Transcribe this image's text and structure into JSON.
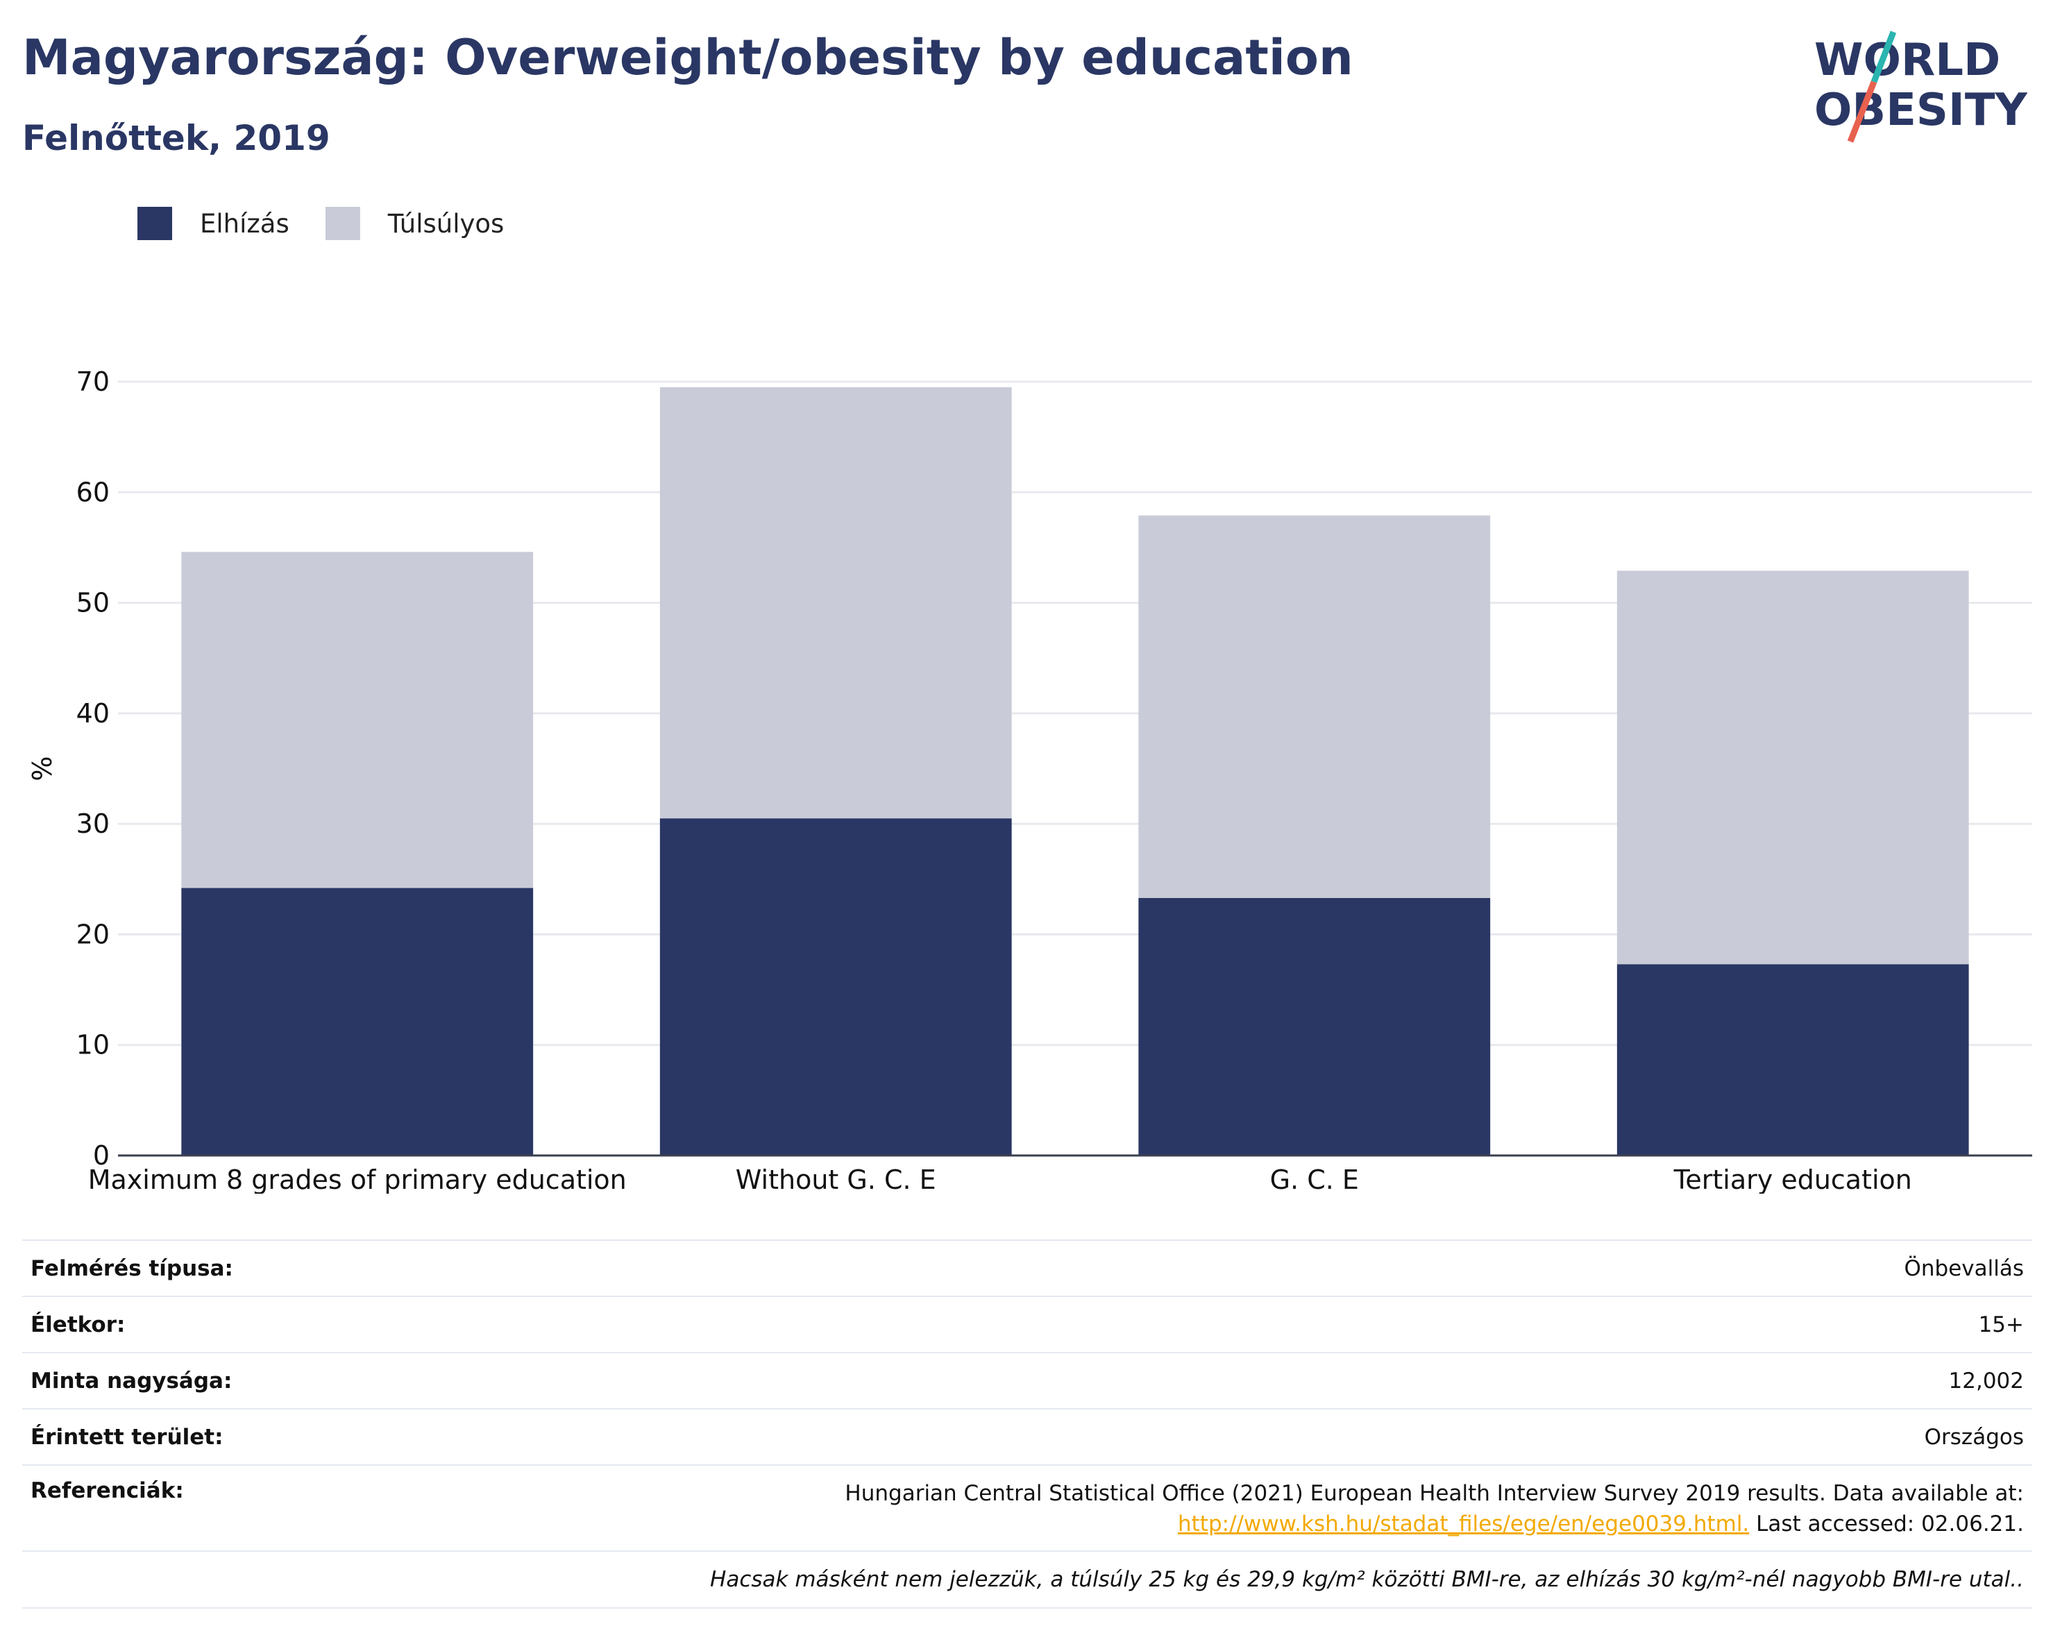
{
  "header": {
    "title": "Magyarország: Overweight/obesity by education",
    "subtitle": "Felnőttek, 2019"
  },
  "logo": {
    "line1": "WORLD",
    "line2": "OBESITY",
    "colors": {
      "text": "#2a3764",
      "accent_teal": "#2bb5b0",
      "accent_coral": "#e8614f"
    }
  },
  "legend": {
    "items": [
      {
        "label": "Elhízás",
        "color": "#2a3764"
      },
      {
        "label": "Túlsúlyos",
        "color": "#c9ccd8"
      }
    ]
  },
  "chart_data": {
    "type": "bar",
    "stacked": true,
    "categories": [
      "Maximum 8 grades of primary education",
      "Without G. C. E",
      "G. C. E",
      "Tertiary education"
    ],
    "series": [
      {
        "name": "Elhízás",
        "values": [
          24.2,
          30.5,
          23.3,
          17.3
        ],
        "color": "#2a3764"
      },
      {
        "name": "Túlsúlyos",
        "values": [
          30.4,
          39.0,
          34.6,
          35.6
        ],
        "color": "#c9ccd8"
      }
    ],
    "ylabel": "%",
    "ylim": [
      0,
      70
    ],
    "yticks": [
      0,
      10,
      20,
      30,
      40,
      50,
      60,
      70
    ],
    "grid": true
  },
  "info": {
    "rows": [
      {
        "key": "Felmérés típusa:",
        "value": "Önbevallás"
      },
      {
        "key": "Életkor:",
        "value": "15+"
      },
      {
        "key": "Minta nagysága:",
        "value": "12,002"
      },
      {
        "key": "Érintett terület:",
        "value": "Országos"
      }
    ],
    "reference": {
      "key": "Referenciák:",
      "line1": "Hungarian Central Statistical Office (2021) European Health Interview Survey 2019 results. Data available at:",
      "link": "http://www.ksh.hu/stadat_files/ege/en/ege0039.html.",
      "after_link": " Last accessed: 02.06.21."
    },
    "note": "Hacsak másként nem jelezzük, a túlsúly 25 kg és 29,9 kg/m² közötti BMI-re, az elhízás 30 kg/m²-nél nagyobb BMI-re utal.."
  }
}
